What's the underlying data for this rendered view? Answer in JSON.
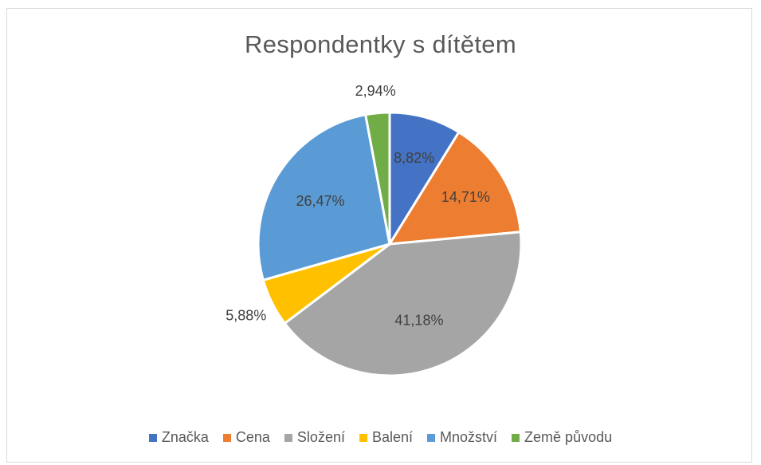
{
  "chart_data": {
    "type": "pie",
    "title": "Respondentky s dítětem",
    "legend_position": "bottom",
    "categories": [
      "Značka",
      "Cena",
      "Složení",
      "Balení",
      "Množství",
      "Země původu"
    ],
    "values": [
      8.82,
      14.71,
      41.18,
      5.88,
      26.47,
      2.94
    ],
    "labels": [
      "8,82%",
      "14,71%",
      "41,18%",
      "5,88%",
      "26,47%",
      "2,94%"
    ],
    "colors": [
      "#4472c4",
      "#ed7d31",
      "#a5a5a5",
      "#ffc000",
      "#5b9bd5",
      "#70ad47"
    ]
  }
}
